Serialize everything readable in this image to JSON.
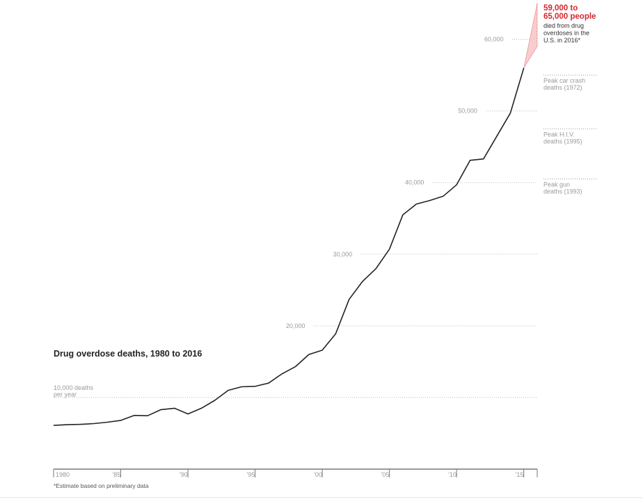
{
  "chart_data": {
    "type": "line",
    "title": "Drug overdose deaths, 1980 to 2016",
    "ylabel_lines": [
      "10,000 deaths",
      "per year"
    ],
    "x_tick_labels": [
      "1980",
      "'85",
      "'90",
      "'95",
      "'00",
      "'05",
      "'10",
      "'15"
    ],
    "x_ticks": [
      1980,
      1985,
      1990,
      1995,
      2000,
      2005,
      2010,
      2015
    ],
    "y_ticks": [
      10000,
      20000,
      30000,
      40000,
      50000,
      60000
    ],
    "y_tick_labels": [
      "10,000 deaths",
      "20,000",
      "30,000",
      "40,000",
      "50,000",
      "60,000"
    ],
    "xlim": [
      1980,
      2016
    ],
    "ylim": [
      0,
      65000
    ],
    "grid": true,
    "series": [
      {
        "x": [
          1980,
          1981,
          1982,
          1983,
          1984,
          1985,
          1986,
          1987,
          1988,
          1989,
          1990,
          1991,
          1992,
          1993,
          1994,
          1995,
          1996,
          1997,
          1998,
          1999,
          2000,
          2001,
          2002,
          2003,
          2004,
          2005,
          2006,
          2007,
          2008,
          2009,
          2010,
          2011,
          2012,
          2013,
          2014,
          2015
        ],
        "values": [
          6100,
          6200,
          6250,
          6350,
          6550,
          6800,
          7500,
          7450,
          8300,
          8500,
          7700,
          8500,
          9600,
          11000,
          11500,
          11550,
          12000,
          13300,
          14300,
          16000,
          16600,
          18900,
          23700,
          26200,
          28000,
          30700,
          35500,
          37000,
          37500,
          38100,
          39700,
          43100,
          43300,
          46500,
          49700,
          56000
        ]
      }
    ],
    "projection": {
      "year": 2016,
      "low": 59000,
      "high": 65000,
      "label_red": [
        "59,000 to",
        "65,000 people"
      ],
      "label_dark": [
        "died from drug",
        "overdoses in the",
        "U.S. in 2016*"
      ]
    },
    "reference_lines": [
      {
        "value": 55000,
        "label": [
          "Peak car crash",
          "deaths (1972)"
        ]
      },
      {
        "value": 47500,
        "label": [
          "Peak H.I.V.",
          "deaths (1995)"
        ]
      },
      {
        "value": 40500,
        "label": [
          "Peak gun",
          "deaths (1993)"
        ]
      }
    ],
    "footnote": "*Estimate based on preliminary data"
  }
}
